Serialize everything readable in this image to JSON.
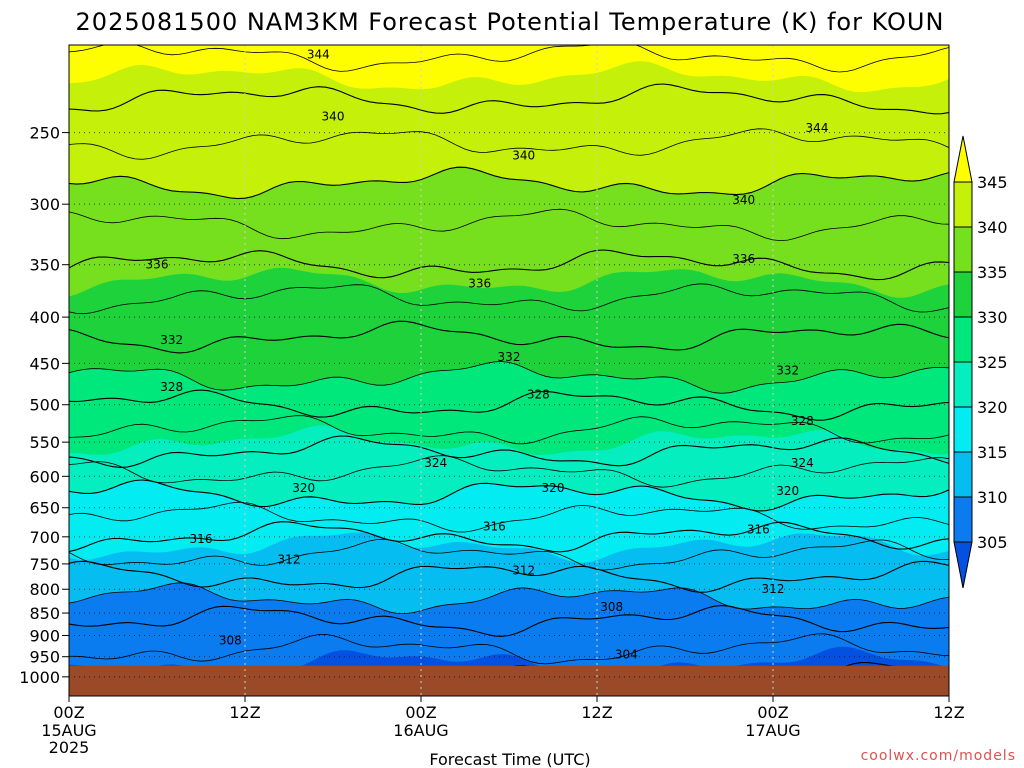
{
  "chart_data": {
    "type": "filled-contour",
    "title": "2025081500 NAM3KM Forecast Potential Temperature (K) for KOUN",
    "xlabel": "Forecast Time (UTC)",
    "ylabel": "",
    "y_axis": {
      "scale": "log-pressure",
      "reversed": true,
      "ticks": [
        250,
        300,
        350,
        400,
        450,
        500,
        550,
        600,
        650,
        700,
        750,
        800,
        850,
        900,
        950,
        1000
      ],
      "tick_labels": [
        "250",
        "300",
        "350",
        "400",
        "450",
        "500",
        "550",
        "600",
        "650",
        "700",
        "750",
        "800",
        "850",
        "900",
        "950",
        "1000"
      ],
      "range": [
        200,
        1050
      ]
    },
    "x_axis": {
      "range_hours": [
        0,
        60
      ],
      "ticks_hours": [
        0,
        12,
        24,
        36,
        48,
        60
      ],
      "tick_labels": [
        "00Z",
        "12Z",
        "00Z",
        "12Z",
        "00Z",
        "12Z"
      ],
      "date_labels": [
        {
          "hour": 0,
          "lines": [
            "15AUG",
            "2025"
          ]
        },
        {
          "hour": 24,
          "lines": [
            "16AUG"
          ]
        },
        {
          "hour": 48,
          "lines": [
            "17AUG"
          ]
        }
      ]
    },
    "grid": true,
    "colorbar": {
      "levels": [
        305,
        310,
        315,
        320,
        325,
        330,
        335,
        340,
        345
      ],
      "colors": [
        "#0450e0",
        "#0a7cf0",
        "#06bdf2",
        "#02ecf2",
        "#04eec0",
        "#00e87c",
        "#1ed23c",
        "#76e01e",
        "#c4f00a",
        "#fefe00"
      ],
      "extend": "both"
    },
    "contour_levels": [
      304,
      308,
      312,
      316,
      320,
      324,
      328,
      332,
      336,
      340,
      344
    ],
    "profile": {
      "pressures_hpa": [
        200,
        250,
        300,
        350,
        400,
        450,
        500,
        550,
        600,
        650,
        700,
        750,
        800,
        850,
        900,
        950,
        1000
      ],
      "theta_k": [
        346.5,
        342.5,
        339.0,
        336.0,
        332.8,
        331.0,
        328.0,
        325.0,
        321.5,
        319.0,
        316.0,
        313.0,
        311.0,
        308.5,
        307.0,
        305.5,
        304.0
      ]
    },
    "contour_labels": [
      {
        "text": "344",
        "hour": 17,
        "p": 205
      },
      {
        "text": "340",
        "hour": 18,
        "p": 240
      },
      {
        "text": "344",
        "hour": 51,
        "p": 247
      },
      {
        "text": "340",
        "hour": 31,
        "p": 265
      },
      {
        "text": "340",
        "hour": 46,
        "p": 297
      },
      {
        "text": "336",
        "hour": 6,
        "p": 350
      },
      {
        "text": "336",
        "hour": 28,
        "p": 367
      },
      {
        "text": "336",
        "hour": 46,
        "p": 345
      },
      {
        "text": "332",
        "hour": 7,
        "p": 424
      },
      {
        "text": "332",
        "hour": 30,
        "p": 443
      },
      {
        "text": "332",
        "hour": 49,
        "p": 458
      },
      {
        "text": "328",
        "hour": 7,
        "p": 478
      },
      {
        "text": "328",
        "hour": 32,
        "p": 487
      },
      {
        "text": "328",
        "hour": 50,
        "p": 521
      },
      {
        "text": "324",
        "hour": 25,
        "p": 580
      },
      {
        "text": "324",
        "hour": 50,
        "p": 580
      },
      {
        "text": "320",
        "hour": 16,
        "p": 618
      },
      {
        "text": "320",
        "hour": 33,
        "p": 618
      },
      {
        "text": "320",
        "hour": 49,
        "p": 623
      },
      {
        "text": "316",
        "hour": 9,
        "p": 704
      },
      {
        "text": "316",
        "hour": 29,
        "p": 682
      },
      {
        "text": "316",
        "hour": 47,
        "p": 687
      },
      {
        "text": "312",
        "hour": 15,
        "p": 742
      },
      {
        "text": "312",
        "hour": 31,
        "p": 763
      },
      {
        "text": "312",
        "hour": 48,
        "p": 800
      },
      {
        "text": "308",
        "hour": 37,
        "p": 837
      },
      {
        "text": "308",
        "hour": 11,
        "p": 911
      },
      {
        "text": "304",
        "hour": 38,
        "p": 945
      }
    ],
    "terrain": {
      "surface_pressure_hpa": 972,
      "color": "#9a4a28"
    }
  },
  "credit": "coolwx.com/models"
}
